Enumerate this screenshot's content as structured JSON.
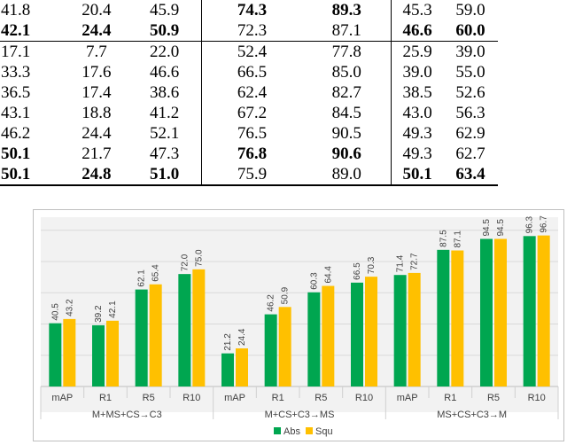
{
  "table": {
    "rows": [
      [
        {
          "v": "41.8",
          "b": false
        },
        {
          "v": "20.4",
          "b": false
        },
        {
          "v": "45.9",
          "b": false
        },
        {
          "v": "74.3",
          "b": true
        },
        {
          "v": "89.3",
          "b": true
        },
        {
          "v": "45.3",
          "b": false
        },
        {
          "v": "59.0",
          "b": false
        }
      ],
      [
        {
          "v": "42.1",
          "b": true
        },
        {
          "v": "24.4",
          "b": true
        },
        {
          "v": "50.9",
          "b": true
        },
        {
          "v": "72.3",
          "b": false
        },
        {
          "v": "87.1",
          "b": false
        },
        {
          "v": "46.6",
          "b": true
        },
        {
          "v": "60.0",
          "b": true
        }
      ],
      [
        {
          "v": "17.1",
          "b": false
        },
        {
          "v": "7.7",
          "b": false
        },
        {
          "v": "22.0",
          "b": false
        },
        {
          "v": "52.4",
          "b": false
        },
        {
          "v": "77.8",
          "b": false
        },
        {
          "v": "25.9",
          "b": false
        },
        {
          "v": "39.0",
          "b": false
        }
      ],
      [
        {
          "v": "33.3",
          "b": false
        },
        {
          "v": "17.6",
          "b": false
        },
        {
          "v": "46.6",
          "b": false
        },
        {
          "v": "66.5",
          "b": false
        },
        {
          "v": "85.0",
          "b": false
        },
        {
          "v": "39.0",
          "b": false
        },
        {
          "v": "55.0",
          "b": false
        }
      ],
      [
        {
          "v": "36.5",
          "b": false
        },
        {
          "v": "17.4",
          "b": false
        },
        {
          "v": "38.6",
          "b": false
        },
        {
          "v": "62.4",
          "b": false
        },
        {
          "v": "82.7",
          "b": false
        },
        {
          "v": "38.5",
          "b": false
        },
        {
          "v": "52.6",
          "b": false
        }
      ],
      [
        {
          "v": "43.1",
          "b": false
        },
        {
          "v": "18.8",
          "b": false
        },
        {
          "v": "41.2",
          "b": false
        },
        {
          "v": "67.2",
          "b": false
        },
        {
          "v": "84.5",
          "b": false
        },
        {
          "v": "43.0",
          "b": false
        },
        {
          "v": "56.3",
          "b": false
        }
      ],
      [
        {
          "v": "46.2",
          "b": false
        },
        {
          "v": "24.4",
          "b": false
        },
        {
          "v": "52.1",
          "b": false
        },
        {
          "v": "76.5",
          "b": false
        },
        {
          "v": "90.5",
          "b": false
        },
        {
          "v": "49.3",
          "b": false
        },
        {
          "v": "62.9",
          "b": false
        }
      ],
      [
        {
          "v": "50.1",
          "b": true
        },
        {
          "v": "21.7",
          "b": false
        },
        {
          "v": "47.3",
          "b": false
        },
        {
          "v": "76.8",
          "b": true
        },
        {
          "v": "90.6",
          "b": true
        },
        {
          "v": "49.3",
          "b": false
        },
        {
          "v": "62.7",
          "b": false
        }
      ],
      [
        {
          "v": "50.1",
          "b": true
        },
        {
          "v": "24.8",
          "b": true
        },
        {
          "v": "51.0",
          "b": true
        },
        {
          "v": "75.9",
          "b": false
        },
        {
          "v": "89.0",
          "b": false
        },
        {
          "v": "50.1",
          "b": true
        },
        {
          "v": "63.4",
          "b": true
        }
      ]
    ]
  },
  "chart_data": {
    "type": "bar",
    "title": "",
    "xlabel": "",
    "ylabel": "",
    "ylim": [
      0,
      105
    ],
    "grid": true,
    "legend_position": "bottom-center",
    "groups": [
      {
        "name": "M+MS+CS→C3",
        "categories": [
          "mAP",
          "R1",
          "R5",
          "R10"
        ]
      },
      {
        "name": "M+CS+C3→MS",
        "categories": [
          "mAP",
          "R1",
          "R5",
          "R10"
        ]
      },
      {
        "name": "MS+CS+C3→M",
        "categories": [
          "mAP",
          "R1",
          "R5",
          "R10"
        ]
      }
    ],
    "series": [
      {
        "name": "Abs",
        "color": "#00a650",
        "values": [
          40.5,
          39.2,
          62.1,
          72.0,
          21.2,
          46.2,
          60.3,
          66.5,
          71.4,
          87.5,
          94.5,
          96.3
        ],
        "labels": [
          "40.5",
          "39.2",
          "62.1",
          "72.0",
          "21.2",
          "46.2",
          "60.3",
          "66.5",
          "71.4",
          "87.5",
          "94.5",
          "96.3"
        ]
      },
      {
        "name": "Squ",
        "color": "#ffc000",
        "values": [
          43.2,
          42.1,
          65.4,
          75.0,
          24.4,
          50.9,
          64.4,
          70.3,
          72.7,
          87.1,
          94.5,
          96.7
        ],
        "labels": [
          "43.2",
          "42.1",
          "65.4",
          "75.0",
          "24.4",
          "50.9",
          "64.4",
          "70.3",
          "72.7",
          "87.1",
          "94.5",
          "96.7"
        ]
      }
    ]
  }
}
